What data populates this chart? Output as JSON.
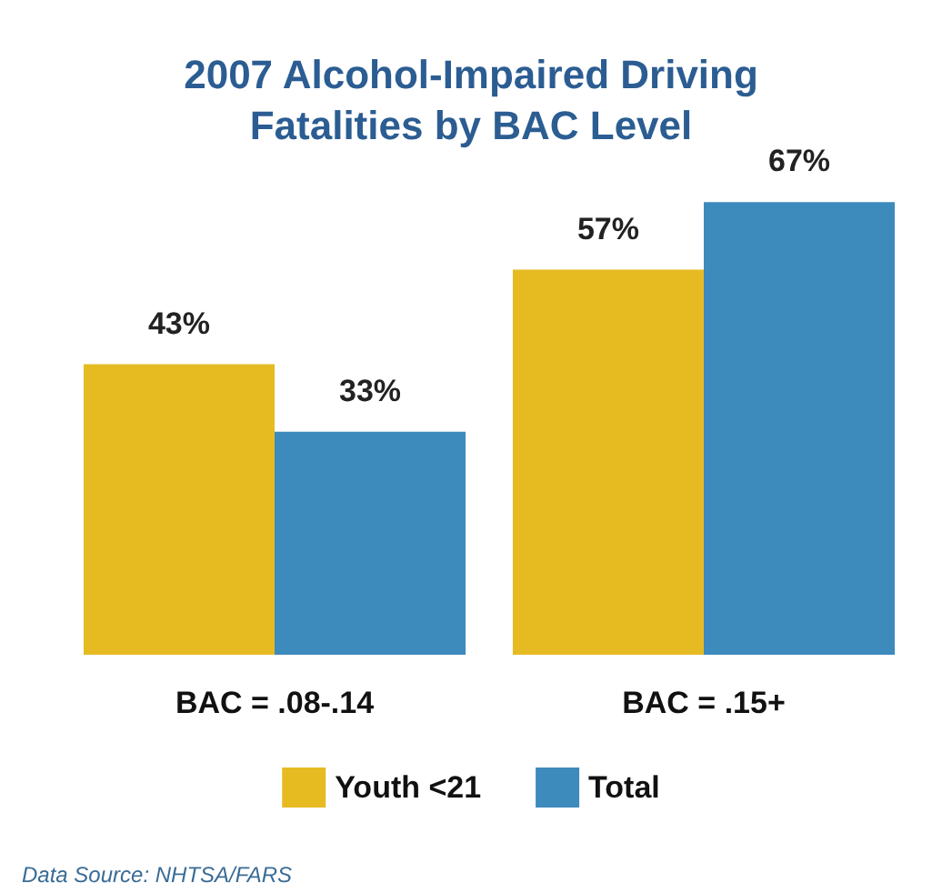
{
  "chart_data": {
    "type": "bar",
    "title": "2007 Alcohol-Impaired Driving\nFatalities by BAC Level",
    "categories": [
      "BAC = .08-.14",
      "BAC = .15+"
    ],
    "series": [
      {
        "name": "Youth <21",
        "color": "#e6bb22",
        "values": [
          43,
          57
        ],
        "value_labels": [
          "43%",
          "57%"
        ]
      },
      {
        "name": "Total",
        "color": "#3d8abd",
        "values": [
          33,
          67
        ],
        "value_labels": [
          "33%",
          "67%"
        ]
      }
    ],
    "legend": "bottom",
    "annotations": [
      "Data Source: NHTSA/FARS"
    ]
  }
}
